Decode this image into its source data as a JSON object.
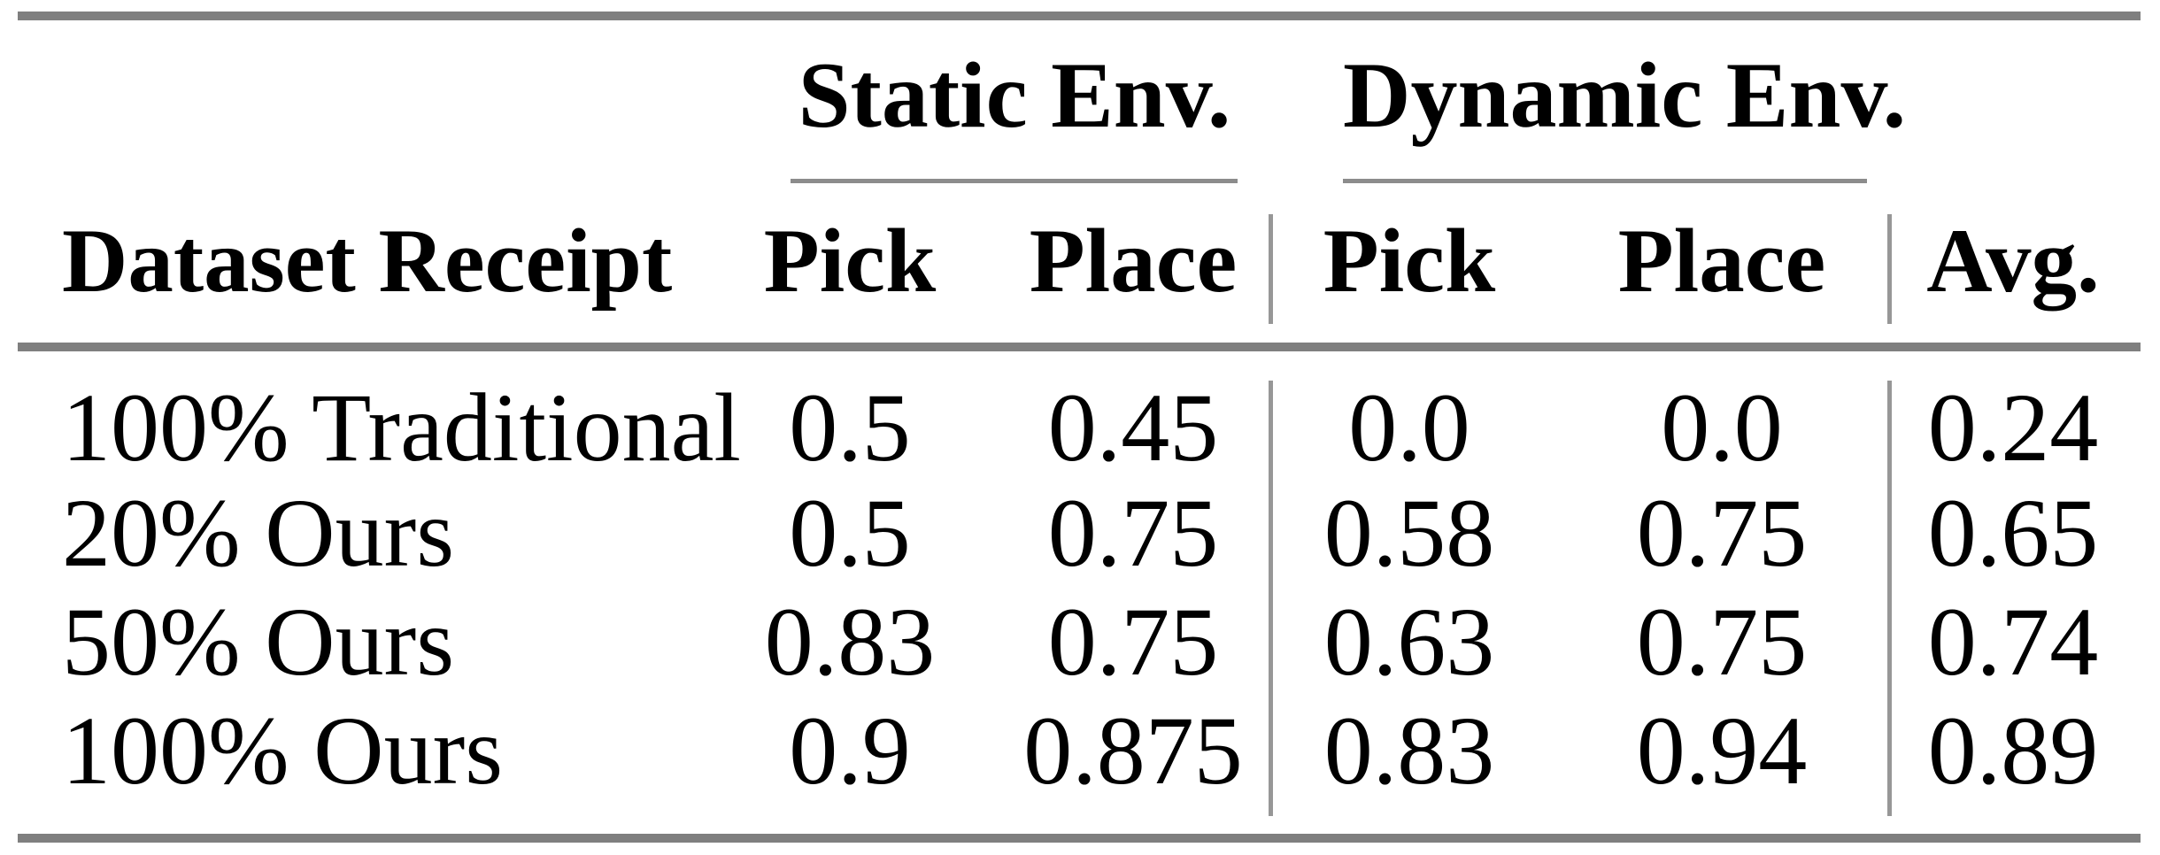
{
  "table": {
    "groups": {
      "static": {
        "label": "Static Env."
      },
      "dynamic": {
        "label": "Dynamic Env."
      }
    },
    "headers": {
      "row_header": "Dataset Receipt",
      "static_pick": "Pick",
      "static_place": "Place",
      "dynamic_pick": "Pick",
      "dynamic_place": "Place",
      "avg": "Avg."
    },
    "rows": [
      {
        "receipt": "100% Traditional",
        "static_pick": "0.5",
        "static_place": "0.45",
        "dynamic_pick": "0.0",
        "dynamic_place": "0.0",
        "avg": "0.24"
      },
      {
        "receipt": "20% Ours",
        "static_pick": "0.5",
        "static_place": "0.75",
        "dynamic_pick": "0.58",
        "dynamic_place": "0.75",
        "avg": "0.65"
      },
      {
        "receipt": "50% Ours",
        "static_pick": "0.83",
        "static_place": "0.75",
        "dynamic_pick": "0.63",
        "dynamic_place": "0.75",
        "avg": "0.74"
      },
      {
        "receipt": "100% Ours",
        "static_pick": "0.9",
        "static_place": "0.875",
        "dynamic_pick": "0.83",
        "dynamic_place": "0.94",
        "avg": "0.89"
      }
    ]
  },
  "colors": {
    "rule_thick": "#7f7f7f",
    "rule_thin": "#8c8c8c",
    "rule_vertical": "#979797",
    "text": "#000000",
    "background": "#ffffff"
  },
  "chart_data": {
    "type": "table",
    "title": "",
    "column_groups": [
      {
        "label": "Static Env.",
        "columns": [
          "Pick",
          "Place"
        ]
      },
      {
        "label": "Dynamic Env.",
        "columns": [
          "Pick",
          "Place"
        ]
      }
    ],
    "columns": [
      "Dataset Receipt",
      "Static Env. Pick",
      "Static Env. Place",
      "Dynamic Env. Pick",
      "Dynamic Env. Place",
      "Avg."
    ],
    "rows": [
      [
        "100% Traditional",
        0.5,
        0.45,
        0.0,
        0.0,
        0.24
      ],
      [
        "20% Ours",
        0.5,
        0.75,
        0.58,
        0.75,
        0.65
      ],
      [
        "50% Ours",
        0.83,
        0.75,
        0.63,
        0.75,
        0.74
      ],
      [
        "100% Ours",
        0.9,
        0.875,
        0.83,
        0.94,
        0.89
      ]
    ],
    "layout": {
      "grid": "partial vertical rules between column groups",
      "legend_position": "none"
    }
  }
}
